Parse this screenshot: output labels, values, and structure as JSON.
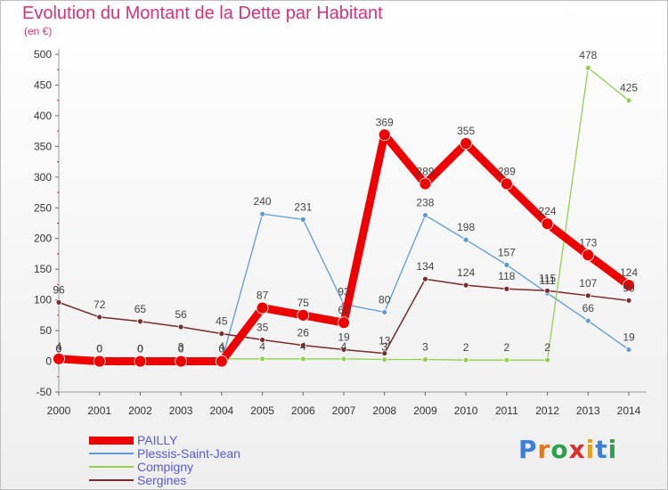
{
  "title": "Evolution du Montant de la Dette par Habitant",
  "subtitle": "(en €)",
  "logo_text": "Proxiti",
  "chart_data": {
    "type": "line",
    "title": "Evolution du Montant de la Dette par Habitant",
    "subtitle": "(en €)",
    "xlabel": "",
    "ylabel": "",
    "x": [
      2000,
      2001,
      2002,
      2003,
      2004,
      2005,
      2006,
      2007,
      2008,
      2009,
      2010,
      2011,
      2012,
      2013,
      2014
    ],
    "ylim": [
      -50,
      500
    ],
    "yticks": [
      -50,
      0,
      50,
      100,
      150,
      200,
      250,
      300,
      350,
      400,
      450,
      500
    ],
    "grid": false,
    "legend_position": "bottom-left",
    "series": [
      {
        "name": "PAILLY",
        "color": "#ee0000",
        "values": [
          4,
          0,
          0,
          0,
          0,
          87,
          75,
          63,
          369,
          289,
          355,
          289,
          224,
          173,
          124
        ]
      },
      {
        "name": "Plessis-Saint-Jean",
        "color": "#5b9bd5",
        "values": [
          0,
          0,
          0,
          0,
          0,
          240,
          231,
          93,
          80,
          238,
          198,
          157,
          111,
          66,
          19
        ]
      },
      {
        "name": "Compigny",
        "color": "#92d050",
        "values": [
          0,
          0,
          0,
          3,
          4,
          4,
          4,
          4,
          3,
          3,
          2,
          2,
          2,
          478,
          425
        ]
      },
      {
        "name": "Sergines",
        "color": "#7a2a2a",
        "values": [
          96,
          72,
          65,
          56,
          45,
          35,
          26,
          19,
          13,
          134,
          124,
          118,
          115,
          107,
          99
        ]
      }
    ],
    "data_labels": [
      {
        "series": 0,
        "values": [
          "4",
          "0",
          "0",
          "0",
          "0",
          "87",
          "75",
          "63",
          "369",
          "289",
          "355",
          "289",
          "224",
          "173",
          "124"
        ]
      },
      {
        "series": 1,
        "values": [
          "0",
          "0",
          "0",
          "0",
          "0",
          "240",
          "231",
          "93",
          "80",
          "238",
          "198",
          "157",
          "111",
          "66",
          "19"
        ]
      },
      {
        "series": 2,
        "values": [
          "0",
          "0",
          "0",
          "3",
          "4",
          "4",
          "4",
          "4",
          "3",
          "3",
          "2",
          "2",
          "2",
          "478",
          "425"
        ]
      },
      {
        "series": 3,
        "values": [
          "96",
          "72",
          "65",
          "56",
          "45",
          "35",
          "26",
          "19",
          "13",
          "134",
          "124",
          "118",
          "115",
          "107",
          "99"
        ]
      }
    ]
  }
}
